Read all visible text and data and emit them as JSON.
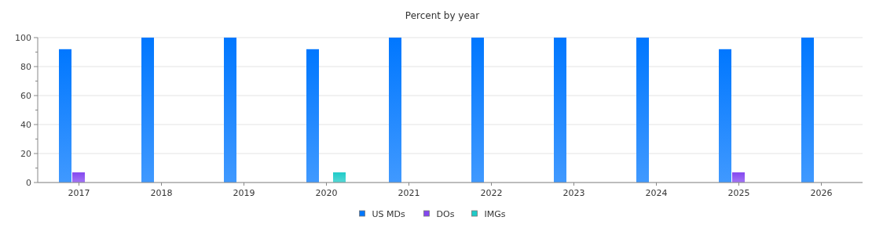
{
  "chart_data": {
    "type": "bar",
    "title": "Percent by year",
    "categories": [
      "2017",
      "2018",
      "2019",
      "2020",
      "2021",
      "2022",
      "2023",
      "2024",
      "2025",
      "2026"
    ],
    "series": [
      {
        "name": "US MDs",
        "color": "#0077ff",
        "values": [
          92,
          100,
          100,
          92,
          100,
          100,
          100,
          100,
          92,
          100
        ]
      },
      {
        "name": "DOs",
        "color": "#8447f0",
        "values": [
          7,
          0,
          0,
          0,
          0,
          0,
          0,
          0,
          7,
          0
        ]
      },
      {
        "name": "IMGs",
        "color": "#1ecbc8",
        "values": [
          0,
          0,
          0,
          7,
          0,
          0,
          0,
          0,
          0,
          0
        ]
      }
    ],
    "ylim": [
      0,
      100
    ],
    "yticks": [
      0,
      {
        "value": 10,
        "label": null
      },
      20,
      {
        "value": 30,
        "label": null
      },
      40,
      {
        "value": 50,
        "label": null
      },
      60,
      {
        "value": 70,
        "label": null
      },
      80,
      {
        "value": 90,
        "label": null
      },
      100
    ],
    "grid": "y",
    "legend": "bottom"
  }
}
